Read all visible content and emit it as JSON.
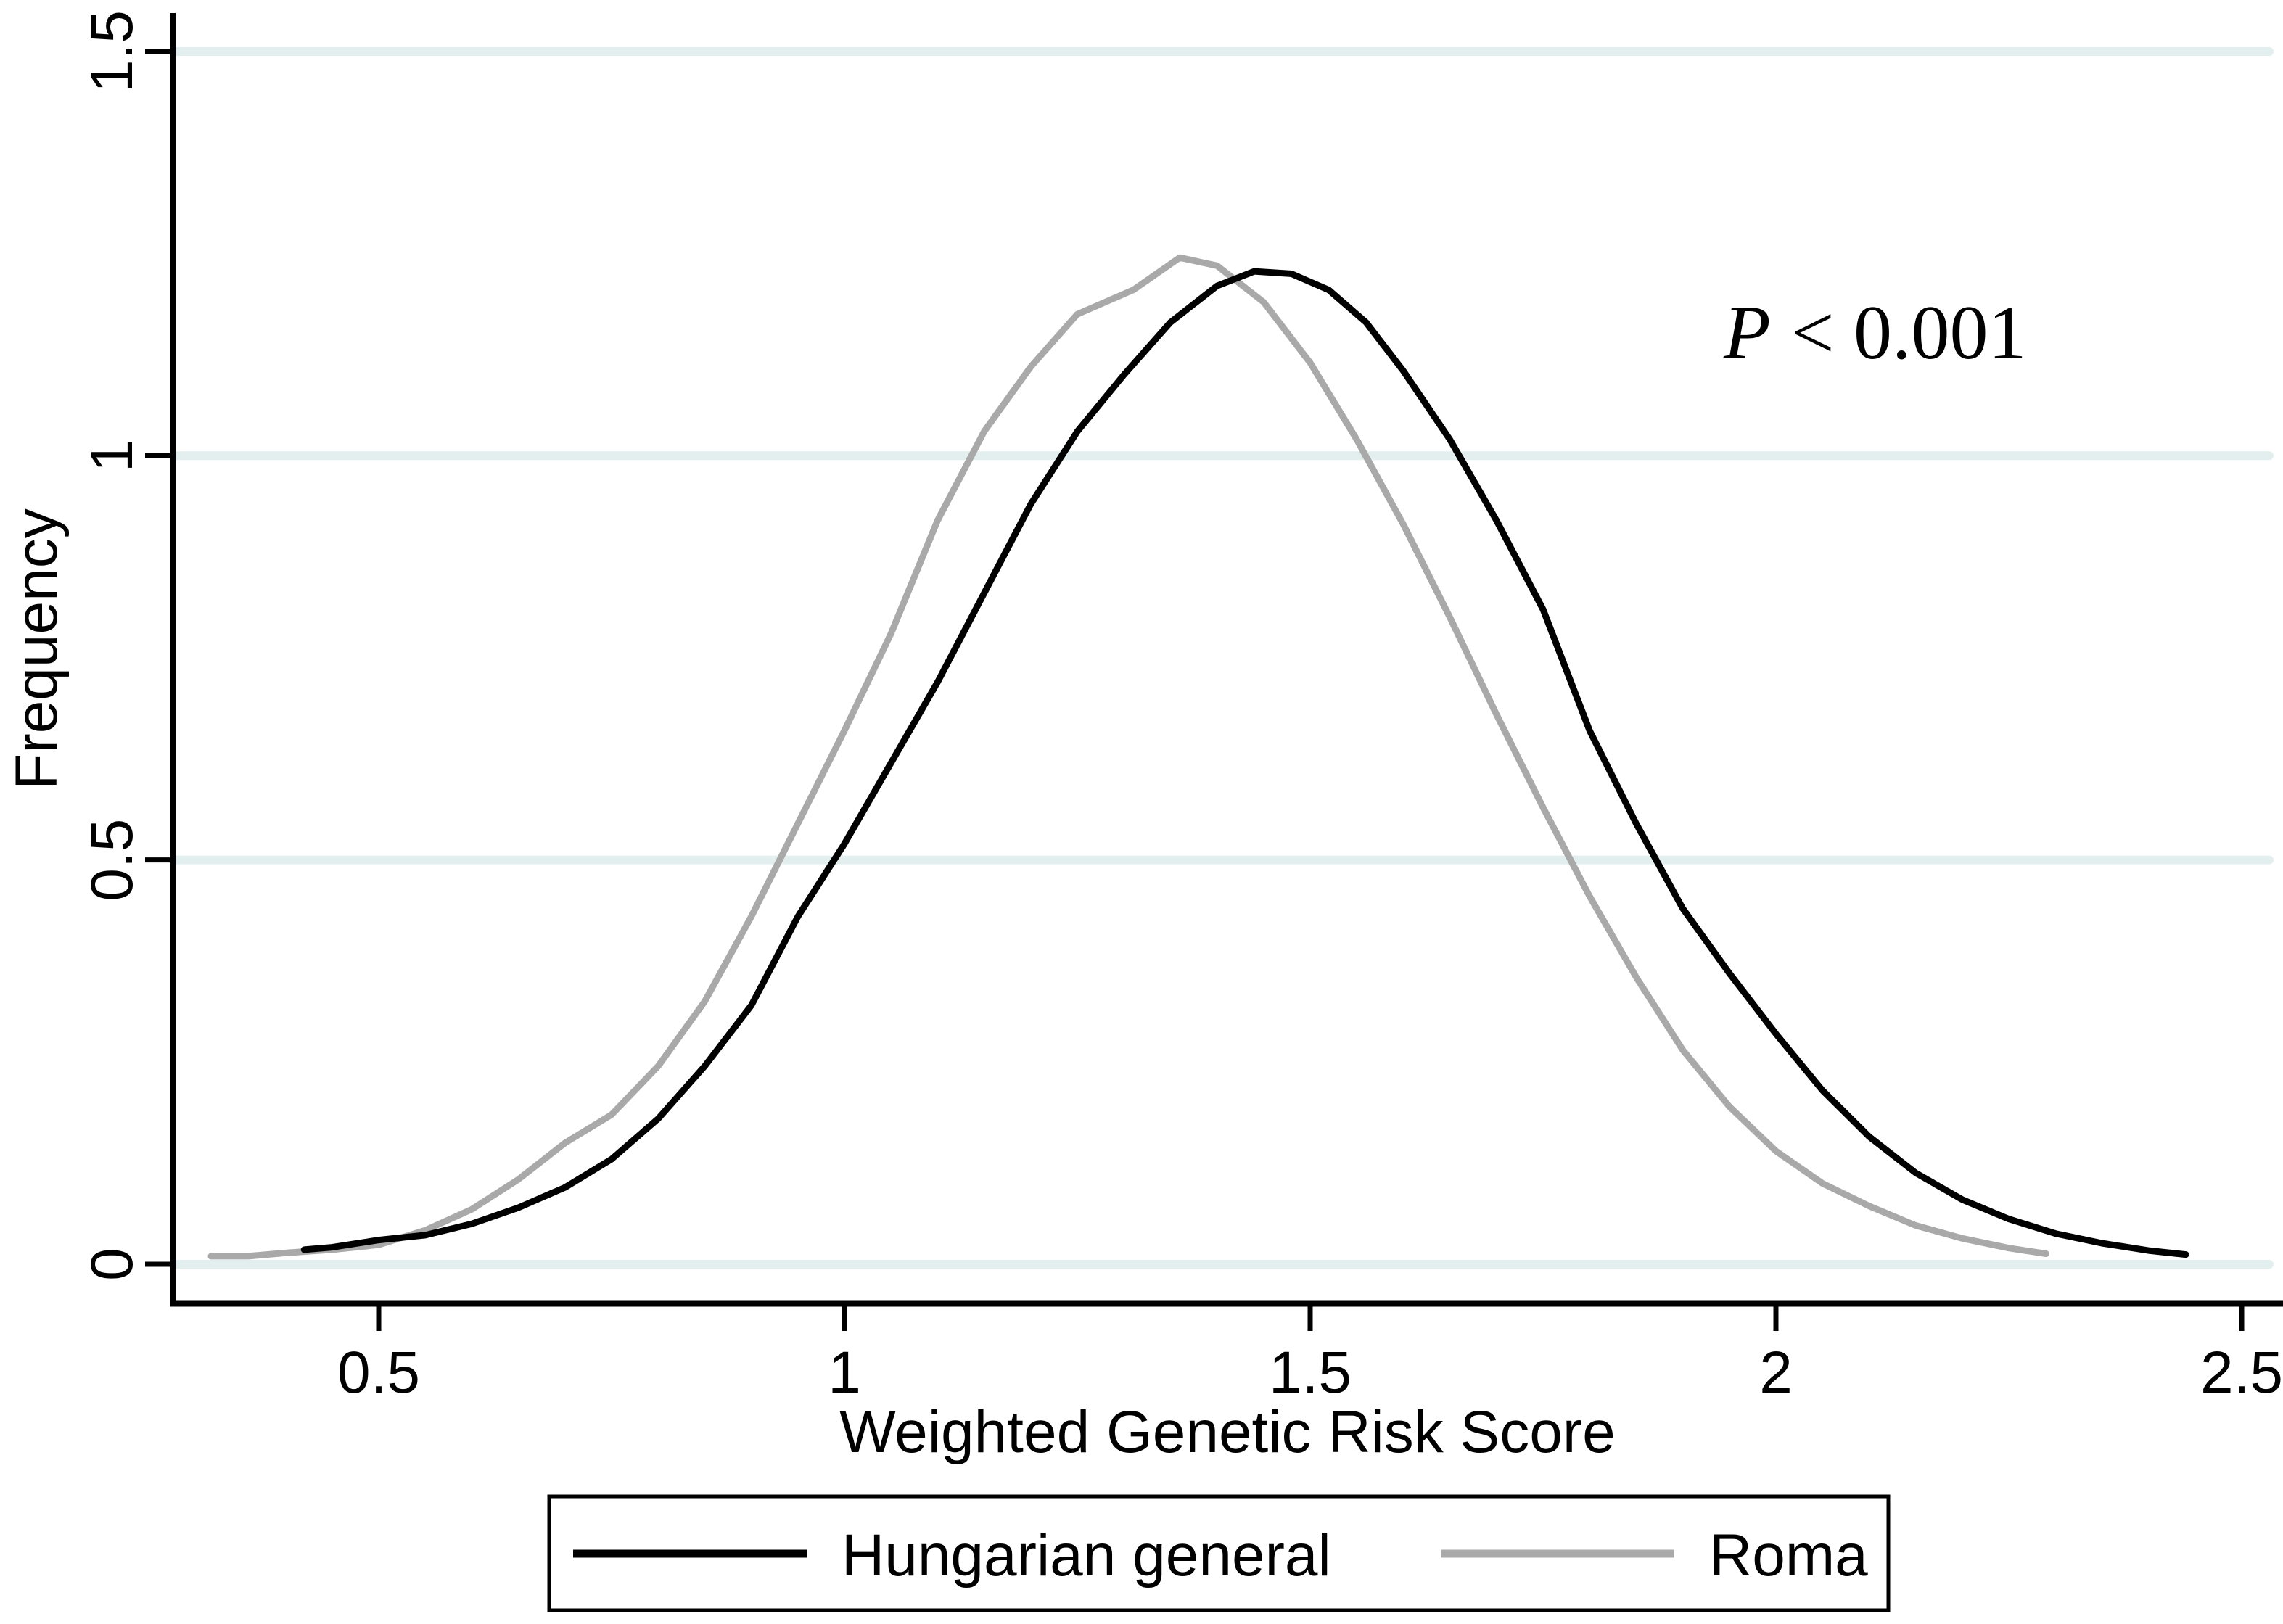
{
  "figure": {
    "background": "#ffffff",
    "text_color": "#000000"
  },
  "annotation": {
    "p_symbol": "P",
    "rest": "< 0.001"
  },
  "legend": {
    "position": "bottom",
    "items": [
      {
        "label": "Hungarian general",
        "color": "#000000"
      },
      {
        "label": "Roma",
        "color": "#a9a9a9"
      }
    ]
  },
  "chart_data": {
    "type": "line",
    "title": "",
    "xlabel": "Weighted Genetic Risk Score",
    "ylabel": "Frequency",
    "xlim": [
      0.3,
      2.55
    ],
    "ylim": [
      0,
      1.5
    ],
    "xticks": [
      0.5,
      1.0,
      1.5,
      2.0,
      2.5
    ],
    "xtick_labels": [
      "0.5",
      "1",
      "1.5",
      "2",
      "2.5"
    ],
    "yticks": [
      0,
      0.5,
      1.0,
      1.5
    ],
    "ytick_labels": [
      "0",
      "0.5",
      "1",
      "1.5"
    ],
    "grid": "horizontal",
    "gridline_color": "#e3efee",
    "legend_position": "bottom",
    "annotation": "P < 0.001",
    "series": [
      {
        "name": "Roma",
        "color": "#a9a9a9",
        "points": [
          [
            0.32,
            0.01
          ],
          [
            0.36,
            0.01
          ],
          [
            0.4,
            0.014
          ],
          [
            0.45,
            0.018
          ],
          [
            0.5,
            0.024
          ],
          [
            0.55,
            0.042
          ],
          [
            0.6,
            0.068
          ],
          [
            0.65,
            0.105
          ],
          [
            0.7,
            0.15
          ],
          [
            0.75,
            0.185
          ],
          [
            0.8,
            0.245
          ],
          [
            0.85,
            0.325
          ],
          [
            0.9,
            0.43
          ],
          [
            0.95,
            0.545
          ],
          [
            1.0,
            0.66
          ],
          [
            1.05,
            0.78
          ],
          [
            1.1,
            0.92
          ],
          [
            1.15,
            1.03
          ],
          [
            1.2,
            1.11
          ],
          [
            1.25,
            1.175
          ],
          [
            1.28,
            1.19
          ],
          [
            1.31,
            1.205
          ],
          [
            1.36,
            1.245
          ],
          [
            1.4,
            1.235
          ],
          [
            1.45,
            1.19
          ],
          [
            1.5,
            1.115
          ],
          [
            1.55,
            1.02
          ],
          [
            1.6,
            0.915
          ],
          [
            1.65,
            0.8
          ],
          [
            1.7,
            0.68
          ],
          [
            1.75,
            0.565
          ],
          [
            1.8,
            0.455
          ],
          [
            1.85,
            0.355
          ],
          [
            1.9,
            0.265
          ],
          [
            1.95,
            0.195
          ],
          [
            2.0,
            0.14
          ],
          [
            2.05,
            0.1
          ],
          [
            2.1,
            0.072
          ],
          [
            2.15,
            0.048
          ],
          [
            2.2,
            0.032
          ],
          [
            2.25,
            0.02
          ],
          [
            2.29,
            0.013
          ]
        ]
      },
      {
        "name": "Hungarian general",
        "color": "#000000",
        "points": [
          [
            0.42,
            0.018
          ],
          [
            0.45,
            0.021
          ],
          [
            0.5,
            0.03
          ],
          [
            0.55,
            0.036
          ],
          [
            0.6,
            0.05
          ],
          [
            0.65,
            0.07
          ],
          [
            0.7,
            0.095
          ],
          [
            0.75,
            0.13
          ],
          [
            0.8,
            0.18
          ],
          [
            0.85,
            0.245
          ],
          [
            0.9,
            0.32
          ],
          [
            0.95,
            0.43
          ],
          [
            1.0,
            0.52
          ],
          [
            1.05,
            0.62
          ],
          [
            1.1,
            0.72
          ],
          [
            1.15,
            0.83
          ],
          [
            1.2,
            0.94
          ],
          [
            1.25,
            1.03
          ],
          [
            1.3,
            1.1
          ],
          [
            1.35,
            1.165
          ],
          [
            1.4,
            1.21
          ],
          [
            1.44,
            1.228
          ],
          [
            1.48,
            1.225
          ],
          [
            1.52,
            1.205
          ],
          [
            1.56,
            1.165
          ],
          [
            1.6,
            1.105
          ],
          [
            1.65,
            1.02
          ],
          [
            1.7,
            0.92
          ],
          [
            1.75,
            0.81
          ],
          [
            1.8,
            0.66
          ],
          [
            1.85,
            0.545
          ],
          [
            1.9,
            0.44
          ],
          [
            1.95,
            0.36
          ],
          [
            2.0,
            0.285
          ],
          [
            2.05,
            0.215
          ],
          [
            2.1,
            0.158
          ],
          [
            2.15,
            0.113
          ],
          [
            2.2,
            0.08
          ],
          [
            2.25,
            0.056
          ],
          [
            2.3,
            0.038
          ],
          [
            2.35,
            0.026
          ],
          [
            2.4,
            0.017
          ],
          [
            2.44,
            0.012
          ]
        ]
      }
    ]
  }
}
